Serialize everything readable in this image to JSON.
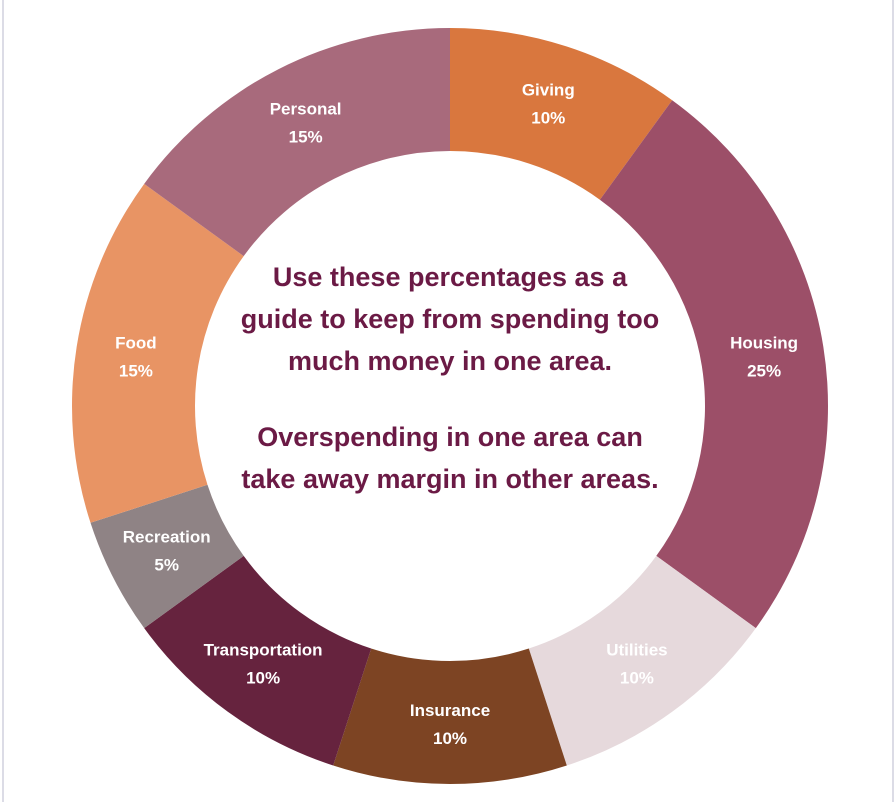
{
  "chart_data": {
    "type": "donut",
    "categories": [
      "Giving",
      "Housing",
      "Utilities",
      "Insurance",
      "Transportation",
      "Recreation",
      "Food",
      "Personal"
    ],
    "values": [
      10,
      25,
      10,
      10,
      10,
      5,
      15,
      15
    ],
    "value_labels": [
      "10%",
      "25%",
      "10%",
      "10%",
      "10%",
      "5%",
      "15%",
      "15%"
    ],
    "colors": [
      "#d9773e",
      "#9c4f68",
      "#e6d9dc",
      "#7d4423",
      "#66233e",
      "#8f8385",
      "#e89464",
      "#a86a7c"
    ],
    "annotations": [
      "Use these percentages as a guide to keep from spending too much money in one area.",
      "Overspending in one area can take away margin in other areas."
    ]
  }
}
